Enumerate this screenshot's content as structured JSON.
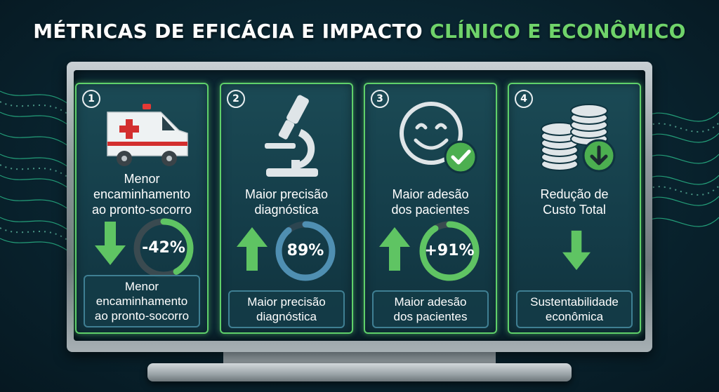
{
  "title": {
    "main": "MÉTRICAS DE EFICÁCIA E IMPACTO",
    "accent": "CLÍNICO E ECONÔMICO"
  },
  "colors": {
    "accent_green": "#5fd06a",
    "ring_gray": "#3a4a50",
    "ring_blue": "#4f8fb2",
    "background": "#0a2733"
  },
  "cards": [
    {
      "number": "1",
      "icon": "ambulance-icon",
      "label": "Menor\nencaminhamento\nao pronto-socorro",
      "arrow": "arrow-down-icon",
      "metric": "-42%",
      "metric_fraction": 0.42,
      "footer": "Menor\nencaminhamento\nao pronto-socorro"
    },
    {
      "number": "2",
      "icon": "microscope-icon",
      "label": "Maior precisão\ndiagnóstica",
      "arrow": "arrow-up-icon",
      "metric": "89%",
      "metric_fraction": 0.89,
      "footer": "Maior precisão\ndiagnóstica"
    },
    {
      "number": "3",
      "icon": "smiley-check-icon",
      "label": "Maior adesão\ndos pacientes",
      "arrow": "arrow-up-icon",
      "metric": "+91%",
      "metric_fraction": 0.91,
      "footer": "Maior adesão\ndos pacientes"
    },
    {
      "number": "4",
      "icon": "coins-down-icon",
      "label": "Redução de\nCusto Total",
      "arrow": "arrow-down-icon",
      "footer": "Sustentabilidade\neconômica"
    }
  ]
}
